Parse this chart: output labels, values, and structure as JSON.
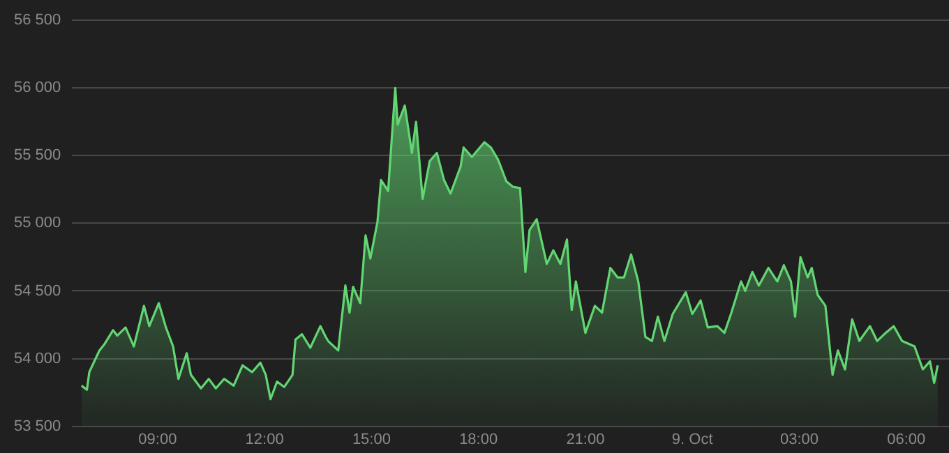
{
  "chart_data": {
    "type": "area",
    "x": [
      "--10-08T06:52",
      "--10-08T07:01",
      "--10-08T07:05",
      "--10-08T07:22",
      "--10-08T07:31",
      "--10-08T07:45",
      "--10-08T07:52",
      "--10-08T08:06",
      "--10-08T08:20",
      "--10-08T08:37",
      "--10-08T08:46",
      "--10-08T09:02",
      "--10-08T09:14",
      "--10-08T09:26",
      "--10-08T09:35",
      "--10-08T09:49",
      "--10-08T09:56",
      "--10-08T10:13",
      "--10-08T10:26",
      "--10-08T10:38",
      "--10-08T10:52",
      "--10-08T11:08",
      "--10-08T11:23",
      "--10-08T11:39",
      "--10-08T11:53",
      "--10-08T12:02",
      "--10-08T12:10",
      "--10-08T12:21",
      "--10-08T12:33",
      "--10-08T12:47",
      "--10-08T12:52",
      "--10-08T13:03",
      "--10-08T13:17",
      "--10-08T13:34",
      "--10-08T13:43",
      "--10-08T13:47",
      "--10-08T14:04",
      "--10-08T14:16",
      "--10-08T14:23",
      "--10-08T14:29",
      "--10-08T14:41",
      "--10-08T14:50",
      "--10-08T14:58",
      "--10-08T15:10",
      "--10-08T15:16",
      "--10-08T15:28",
      "--10-08T15:40",
      "--10-08T15:44",
      "--10-08T15:56",
      "--10-08T16:08",
      "--10-08T16:15",
      "--10-08T16:26",
      "--10-08T16:38",
      "--10-08T16:50",
      "--10-08T17:02",
      "--10-08T17:13",
      "--10-08T17:30",
      "--10-08T17:35",
      "--10-08T17:49",
      "--10-08T18:10",
      "--10-08T18:21",
      "--10-08T18:33",
      "--10-08T18:47",
      "--10-08T18:58",
      "--10-08T19:10",
      "--10-08T19:19",
      "--10-08T19:26",
      "--10-08T19:38",
      "--10-08T19:55",
      "--10-08T20:06",
      "--10-08T20:18",
      "--10-08T20:29",
      "--10-08T20:37",
      "--10-08T20:44",
      "--10-08T21:00",
      "--10-08T21:16",
      "--10-08T21:28",
      "--10-08T21:42",
      "--10-08T21:54",
      "--10-08T22:05",
      "--10-08T22:17",
      "--10-08T22:29",
      "--10-08T22:41",
      "--10-08T22:52",
      "--10-08T23:02",
      "--10-08T23:13",
      "--10-08T23:27",
      "--10-08T23:49",
      "--10-09T00:00",
      "--10-09T00:14",
      "--10-09T00:26",
      "--10-09T00:42",
      "--10-09T00:54",
      "--10-09T01:05",
      "--10-09T01:22",
      "--10-09T01:29",
      "--10-09T01:41",
      "--10-09T01:52",
      "--10-09T02:08",
      "--10-09T02:23",
      "--10-09T02:34",
      "--10-09T02:46",
      "--10-09T02:53",
      "--10-09T03:02",
      "--10-09T03:14",
      "--10-09T03:21",
      "--10-09T03:31",
      "--10-09T03:44",
      "--10-09T03:56",
      "--10-09T04:05",
      "--10-09T04:17",
      "--10-09T04:29",
      "--10-09T04:41",
      "--10-09T04:59",
      "--10-09T05:11",
      "--10-09T05:23",
      "--10-09T05:39",
      "--10-09T05:53",
      "--10-09T06:14",
      "--10-09T06:28",
      "--10-09T06:40",
      "--10-09T06:47",
      "--10-09T06:53"
    ],
    "series": [
      {
        "color": "#62d672",
        "values": [
          53800,
          53770,
          53900,
          54060,
          54110,
          54210,
          54170,
          54230,
          54090,
          54390,
          54240,
          54410,
          54230,
          54090,
          53850,
          54040,
          53880,
          53780,
          53850,
          53780,
          53850,
          53800,
          53950,
          53900,
          53970,
          53880,
          53700,
          53830,
          53790,
          53880,
          54140,
          54180,
          54080,
          54240,
          54160,
          54130,
          54060,
          54540,
          54340,
          54530,
          54410,
          54910,
          54740,
          55010,
          55320,
          55240,
          56000,
          55730,
          55870,
          55520,
          55750,
          55180,
          55460,
          55520,
          55320,
          55220,
          55420,
          55560,
          55490,
          55600,
          55560,
          55470,
          55310,
          55270,
          55260,
          54640,
          54950,
          55030,
          54700,
          54800,
          54700,
          54880,
          54360,
          54570,
          54190,
          54390,
          54340,
          54670,
          54600,
          54600,
          54770,
          54570,
          54160,
          54130,
          54310,
          54130,
          54330,
          54490,
          54330,
          54430,
          54230,
          54240,
          54190,
          54330,
          54570,
          54500,
          54640,
          54540,
          54670,
          54570,
          54690,
          54570,
          54310,
          54750,
          54600,
          54670,
          54470,
          54390,
          53880,
          54060,
          53920,
          54290,
          54130,
          54240,
          54130,
          54180,
          54240,
          54130,
          54090,
          53920,
          53980,
          53820,
          53950
        ]
      }
    ],
    "xlim": [
      "--10-08T06:36",
      "--10-09T07:12"
    ],
    "xticks": [
      {
        "value": "--10-08T09:00",
        "label": "09:00"
      },
      {
        "value": "--10-08T12:00",
        "label": "12:00"
      },
      {
        "value": "--10-08T15:00",
        "label": "15:00"
      },
      {
        "value": "--10-08T18:00",
        "label": "18:00"
      },
      {
        "value": "--10-08T21:00",
        "label": "21:00"
      },
      {
        "value": "--10-09T00:00",
        "label": "9. Oct"
      },
      {
        "value": "--10-09T03:00",
        "label": "03:00"
      },
      {
        "value": "--10-09T06:00",
        "label": "06:00"
      }
    ],
    "ylim": [
      53500,
      56500
    ],
    "yticks": [
      {
        "value": 53500,
        "label": "53 500"
      },
      {
        "value": 54000,
        "label": "54 000"
      },
      {
        "value": 54500,
        "label": "54 500"
      },
      {
        "value": 55000,
        "label": "55 000"
      },
      {
        "value": 55500,
        "label": "55 500"
      },
      {
        "value": 56000,
        "label": "56 000"
      },
      {
        "value": 56500,
        "label": "56 500"
      }
    ],
    "grid": "y",
    "legend": false,
    "marker": "none",
    "line_style": "solid"
  }
}
